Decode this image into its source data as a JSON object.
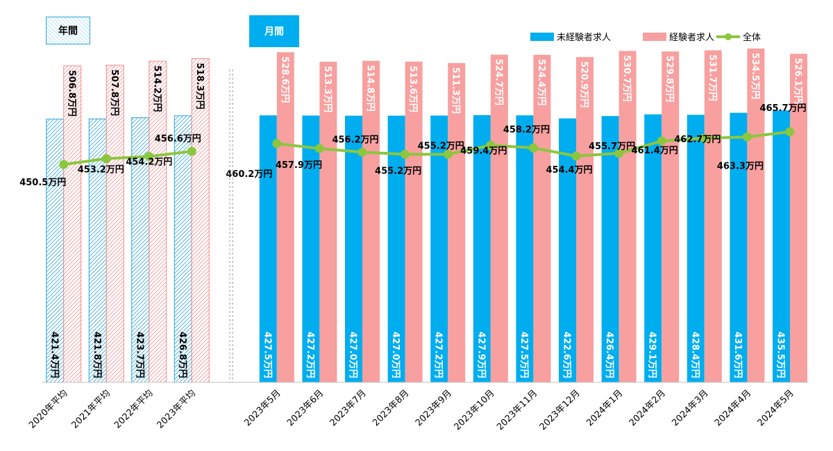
{
  "section_labels": {
    "annual": "年間",
    "monthly": "月間"
  },
  "colors": {
    "inexperienced": "#00adef",
    "experienced": "#f7a09f",
    "overall": "#8cc63f",
    "annual_hatch_blue": "#29a3d8",
    "annual_hatch_red": "#f28b8b"
  },
  "legend": [
    {
      "key": "inexperienced",
      "label": "未経験者求人"
    },
    {
      "key": "experienced",
      "label": "経験者求人"
    },
    {
      "key": "overall",
      "label": "全体"
    }
  ],
  "chart_data": {
    "type": "bar",
    "categories": [
      "2020年平均",
      "2021年平均",
      "2022年平均",
      "2023年平均",
      "2023年5月",
      "2023年6月",
      "2023年7月",
      "2023年8月",
      "2023年9月",
      "2023年10月",
      "2023年11月",
      "2023年12月",
      "2024年1月",
      "2024年2月",
      "2024年3月",
      "2024年4月",
      "2024年5月"
    ],
    "groups": [
      {
        "name": "年間",
        "range": [
          0,
          3
        ],
        "style": "hatched"
      },
      {
        "name": "月間",
        "range": [
          4,
          16
        ],
        "style": "solid"
      }
    ],
    "series": [
      {
        "name": "未経験者求人",
        "type": "bar",
        "values": [
          421.4,
          421.8,
          423.7,
          426.8,
          427.5,
          427.2,
          427.0,
          427.0,
          427.2,
          427.9,
          427.5,
          422.6,
          426.4,
          429.1,
          428.4,
          431.6,
          435.5
        ],
        "labels": [
          "421.4万円",
          "421.8万円",
          "423.7万円",
          "426.8万円",
          "427.5万円",
          "427.2万円",
          "427.0万円",
          "427.0万円",
          "427.2万円",
          "427.9万円",
          "427.5万円",
          "422.6万円",
          "426.4万円",
          "429.1万円",
          "428.4万円",
          "431.6万円",
          "435.5万円"
        ]
      },
      {
        "name": "経験者求人",
        "type": "bar",
        "values": [
          506.8,
          507.8,
          514.2,
          518.3,
          528.6,
          513.3,
          514.8,
          513.6,
          511.3,
          524.7,
          524.4,
          520.9,
          530.7,
          529.8,
          531.7,
          534.5,
          526.1
        ],
        "labels": [
          "506.8万円",
          "507.8万円",
          "514.2万円",
          "518.3万円",
          "528.6万円",
          "513.3万円",
          "514.8万円",
          "513.6万円",
          "511.3万円",
          "524.7万円",
          "524.4万円",
          "520.9万円",
          "530.7万円",
          "529.8万円",
          "531.7万円",
          "534.5万円",
          "526.1万円"
        ]
      },
      {
        "name": "全体",
        "type": "line",
        "values": [
          450.5,
          453.2,
          454.2,
          456.6,
          460.2,
          457.9,
          456.2,
          455.2,
          455.2,
          459.4,
          458.2,
          454.4,
          455.7,
          461.4,
          462.7,
          463.3,
          465.7
        ],
        "labels": [
          "450.5万円",
          "453.2万円",
          "454.2万円",
          "456.6万円",
          "460.2万円",
          "457.9万円",
          "456.2万円",
          "455.2万円",
          "455.2万円",
          "459.4万円",
          "458.2万円",
          "454.4万円",
          "455.7万円",
          "461.4万円",
          "462.7万円",
          "463.3万円",
          "465.7万円"
        ]
      }
    ],
    "separator_after_index": 3,
    "legend_position": "top-right",
    "grid": false
  }
}
